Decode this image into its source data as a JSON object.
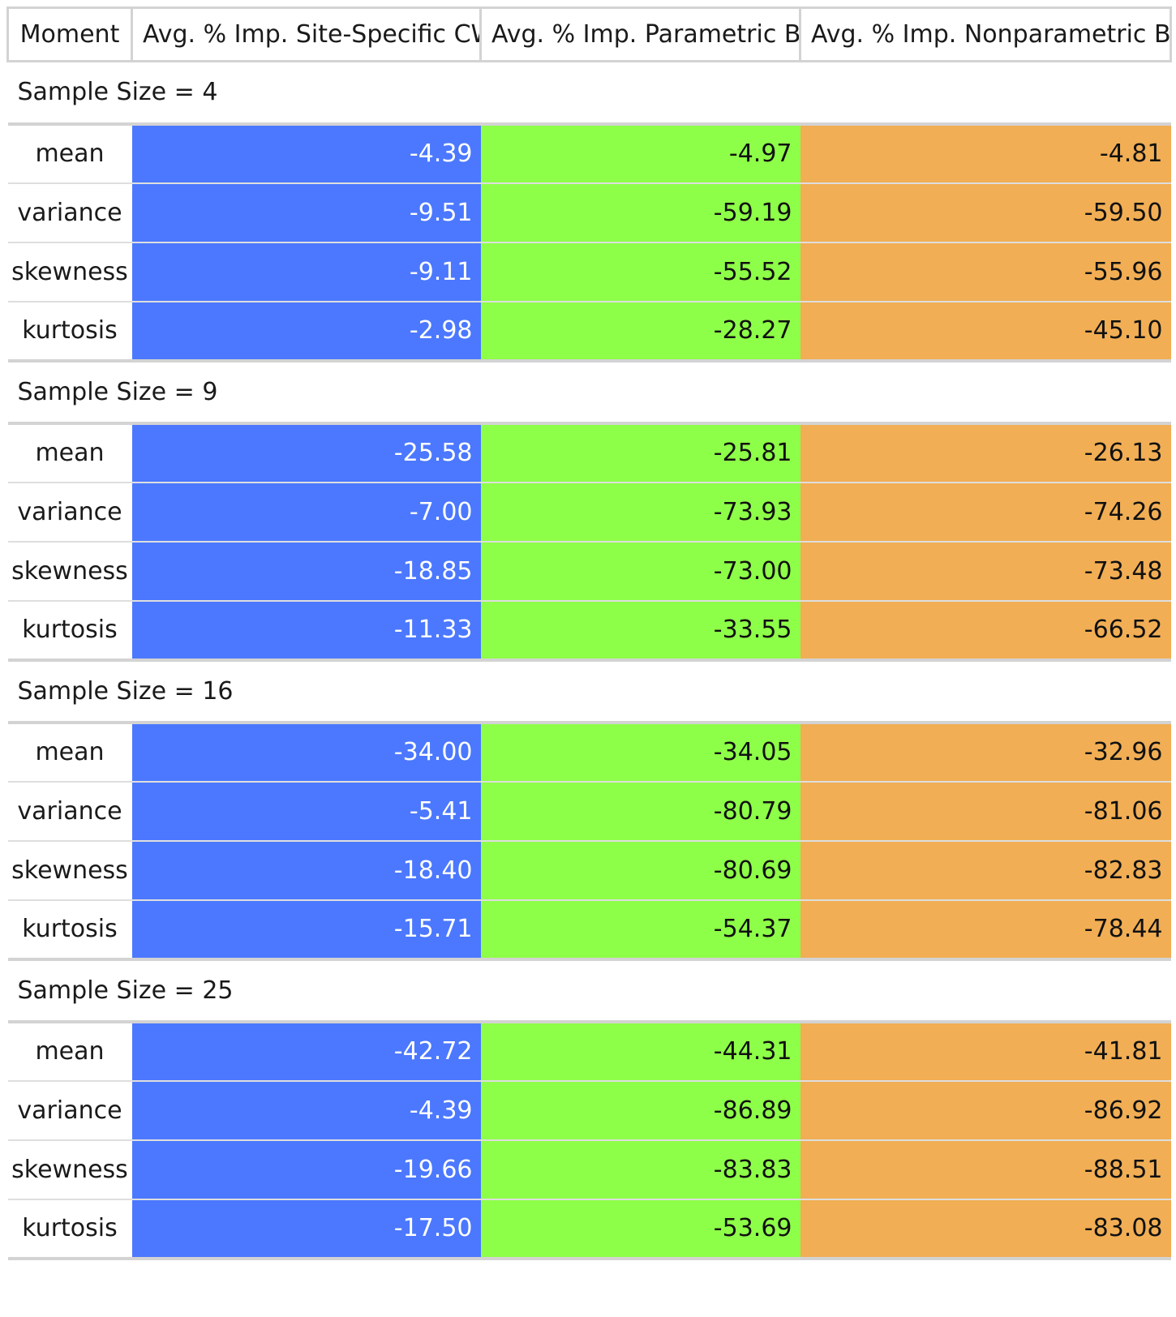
{
  "columns": {
    "moment": "Moment",
    "cw": "Avg. % Imp. Site-Specific CW",
    "pbs": "Avg. % Imp. Parametric BS",
    "npbs": "Avg. % Imp. Nonparametric BS"
  },
  "colors": {
    "cw": "#4b78ff",
    "pbs": "#8eff48",
    "npbs": "#f1ae54"
  },
  "groups": [
    {
      "label": "Sample Size = 4",
      "rows": [
        {
          "moment": "mean",
          "cw": "-4.39",
          "pbs": "-4.97",
          "npbs": "-4.81"
        },
        {
          "moment": "variance",
          "cw": "-9.51",
          "pbs": "-59.19",
          "npbs": "-59.50"
        },
        {
          "moment": "skewness",
          "cw": "-9.11",
          "pbs": "-55.52",
          "npbs": "-55.96"
        },
        {
          "moment": "kurtosis",
          "cw": "-2.98",
          "pbs": "-28.27",
          "npbs": "-45.10"
        }
      ]
    },
    {
      "label": "Sample Size = 9",
      "rows": [
        {
          "moment": "mean",
          "cw": "-25.58",
          "pbs": "-25.81",
          "npbs": "-26.13"
        },
        {
          "moment": "variance",
          "cw": "-7.00",
          "pbs": "-73.93",
          "npbs": "-74.26"
        },
        {
          "moment": "skewness",
          "cw": "-18.85",
          "pbs": "-73.00",
          "npbs": "-73.48"
        },
        {
          "moment": "kurtosis",
          "cw": "-11.33",
          "pbs": "-33.55",
          "npbs": "-66.52"
        }
      ]
    },
    {
      "label": "Sample Size = 16",
      "rows": [
        {
          "moment": "mean",
          "cw": "-34.00",
          "pbs": "-34.05",
          "npbs": "-32.96"
        },
        {
          "moment": "variance",
          "cw": "-5.41",
          "pbs": "-80.79",
          "npbs": "-81.06"
        },
        {
          "moment": "skewness",
          "cw": "-18.40",
          "pbs": "-80.69",
          "npbs": "-82.83"
        },
        {
          "moment": "kurtosis",
          "cw": "-15.71",
          "pbs": "-54.37",
          "npbs": "-78.44"
        }
      ]
    },
    {
      "label": "Sample Size = 25",
      "rows": [
        {
          "moment": "mean",
          "cw": "-42.72",
          "pbs": "-44.31",
          "npbs": "-41.81"
        },
        {
          "moment": "variance",
          "cw": "-4.39",
          "pbs": "-86.89",
          "npbs": "-86.92"
        },
        {
          "moment": "skewness",
          "cw": "-19.66",
          "pbs": "-83.83",
          "npbs": "-88.51"
        },
        {
          "moment": "kurtosis",
          "cw": "-17.50",
          "pbs": "-53.69",
          "npbs": "-83.08"
        }
      ]
    }
  ]
}
